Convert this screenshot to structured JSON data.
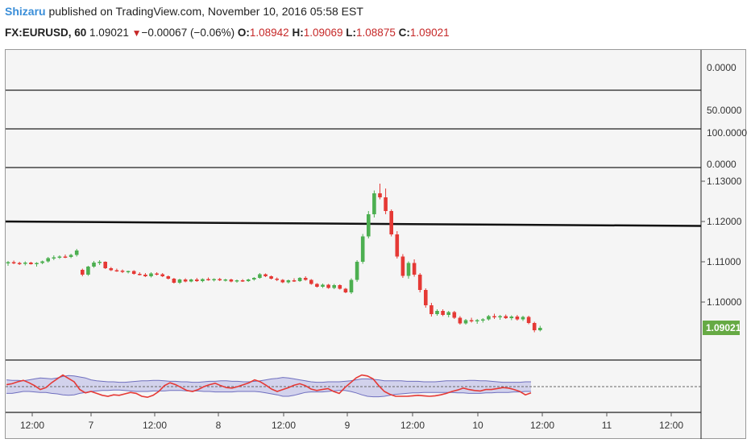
{
  "header": {
    "author": "Shizaru",
    "published_text": " published on TradingView.com, November 10, 2016 05:58 EST"
  },
  "ticker": {
    "symbol_interval": "FX:EURUSD, 60",
    "last": "1.09021",
    "down_icon": "triangle-down-icon",
    "change": "−0.00067 (−0.06%)",
    "o_label": "O:",
    "o_value": "1.08942",
    "h_label": "H:",
    "h_value": "1.09069",
    "l_label": "L:",
    "l_value": "1.08875",
    "c_label": "C:",
    "c_value": "1.09021"
  },
  "colors": {
    "up": "#4caf50",
    "down": "#e53935",
    "trendline": "#111111",
    "band_fill": "#d2d2ec",
    "band_line": "#6f6fbf",
    "osc_line": "#e53935",
    "price_tag_bg": "#66aa44",
    "pane_bg": "#f5f5f5"
  },
  "chart_data": {
    "type": "candlestick",
    "price_axis": {
      "labels": [
        "1.13000",
        "1.12000",
        "1.11000",
        "1.10000"
      ],
      "ylim": [
        1.0875,
        1.1335
      ]
    },
    "empty_panes": [
      {
        "axis_labels": [
          "0.0000"
        ]
      },
      {
        "axis_labels": [
          "50.0000"
        ]
      },
      {
        "axis_labels": [
          "100.0000",
          "0.0000"
        ]
      }
    ],
    "current_price_label": "1.09021",
    "x_axis_labels": [
      "12:00",
      "7",
      "12:00",
      "8",
      "12:00",
      "9",
      "12:00",
      "10",
      "12:00",
      "11",
      "12:00"
    ],
    "trendline": {
      "start": 1.12,
      "end": 1.1189
    },
    "candles": [
      [
        1.1096,
        1.1102,
        1.109,
        1.1099
      ],
      [
        1.1099,
        1.1103,
        1.1094,
        1.1097
      ],
      [
        1.1097,
        1.11,
        1.1092,
        1.1095
      ],
      [
        1.1095,
        1.1101,
        1.1091,
        1.1098
      ],
      [
        1.1098,
        1.11,
        1.1093,
        1.1094
      ],
      [
        1.1094,
        1.1099,
        1.1088,
        1.1097
      ],
      [
        1.1097,
        1.1103,
        1.1094,
        1.1101
      ],
      [
        1.1101,
        1.1112,
        1.1098,
        1.1109
      ],
      [
        1.1109,
        1.1116,
        1.1104,
        1.1111
      ],
      [
        1.1111,
        1.1116,
        1.1107,
        1.1113
      ],
      [
        1.1113,
        1.1118,
        1.1109,
        1.1112
      ],
      [
        1.1112,
        1.112,
        1.1109,
        1.1117
      ],
      [
        1.1117,
        1.1132,
        1.1113,
        1.1128
      ],
      [
        1.108,
        1.1083,
        1.1064,
        1.1068
      ],
      [
        1.1068,
        1.109,
        1.1065,
        1.1088
      ],
      [
        1.1088,
        1.1102,
        1.1085,
        1.1098
      ],
      [
        1.1098,
        1.1104,
        1.1092,
        1.11
      ],
      [
        1.11,
        1.1101,
        1.1082,
        1.1084
      ],
      [
        1.1084,
        1.1087,
        1.1077,
        1.1079
      ],
      [
        1.1079,
        1.1083,
        1.1075,
        1.1078
      ],
      [
        1.1078,
        1.1081,
        1.1072,
        1.1075
      ],
      [
        1.1075,
        1.1078,
        1.1071,
        1.1077
      ],
      [
        1.1077,
        1.1079,
        1.1068,
        1.107
      ],
      [
        1.107,
        1.1074,
        1.1066,
        1.1068
      ],
      [
        1.1068,
        1.1072,
        1.1062,
        1.1064
      ],
      [
        1.1064,
        1.1074,
        1.1061,
        1.1071
      ],
      [
        1.1071,
        1.1074,
        1.1066,
        1.1069
      ],
      [
        1.1069,
        1.1072,
        1.1062,
        1.1064
      ],
      [
        1.1064,
        1.1066,
        1.1056,
        1.1058
      ],
      [
        1.1058,
        1.106,
        1.1046,
        1.1048
      ],
      [
        1.1048,
        1.1058,
        1.1045,
        1.1056
      ],
      [
        1.1056,
        1.1059,
        1.1049,
        1.1051
      ],
      [
        1.1051,
        1.1058,
        1.1049,
        1.1056
      ],
      [
        1.1056,
        1.106,
        1.105,
        1.1052
      ],
      [
        1.1052,
        1.1059,
        1.1049,
        1.1057
      ],
      [
        1.1057,
        1.1061,
        1.1053,
        1.1055
      ],
      [
        1.1055,
        1.1059,
        1.1051,
        1.1057
      ],
      [
        1.1057,
        1.106,
        1.1052,
        1.1054
      ],
      [
        1.1054,
        1.1058,
        1.1051,
        1.1056
      ],
      [
        1.1056,
        1.1058,
        1.1049,
        1.1051
      ],
      [
        1.1051,
        1.1056,
        1.1048,
        1.1054
      ],
      [
        1.1054,
        1.1057,
        1.105,
        1.1052
      ],
      [
        1.1052,
        1.1058,
        1.105,
        1.1056
      ],
      [
        1.1056,
        1.1062,
        1.1053,
        1.106
      ],
      [
        1.106,
        1.1072,
        1.1058,
        1.1069
      ],
      [
        1.1069,
        1.1071,
        1.1062,
        1.1064
      ],
      [
        1.1064,
        1.1066,
        1.1056,
        1.1058
      ],
      [
        1.1058,
        1.1061,
        1.1052,
        1.1055
      ],
      [
        1.1055,
        1.1057,
        1.1047,
        1.1049
      ],
      [
        1.1049,
        1.1056,
        1.1046,
        1.1054
      ],
      [
        1.1054,
        1.1059,
        1.105,
        1.1052
      ],
      [
        1.1052,
        1.1062,
        1.105,
        1.106
      ],
      [
        1.106,
        1.1064,
        1.1053,
        1.1055
      ],
      [
        1.1055,
        1.1057,
        1.1043,
        1.1045
      ],
      [
        1.1045,
        1.1047,
        1.1036,
        1.1038
      ],
      [
        1.1038,
        1.1046,
        1.1035,
        1.1043
      ],
      [
        1.1043,
        1.1045,
        1.1033,
        1.1035
      ],
      [
        1.1035,
        1.1045,
        1.1032,
        1.1042
      ],
      [
        1.1042,
        1.1044,
        1.1031,
        1.1033
      ],
      [
        1.1033,
        1.1035,
        1.1022,
        1.1024
      ],
      [
        1.1024,
        1.1059,
        1.102,
        1.1055
      ],
      [
        1.1055,
        1.1104,
        1.105,
        1.11
      ],
      [
        1.11,
        1.1169,
        1.1095,
        1.1163
      ],
      [
        1.1163,
        1.1226,
        1.1158,
        1.1218
      ],
      [
        1.1218,
        1.1277,
        1.121,
        1.127
      ],
      [
        1.127,
        1.1294,
        1.1255,
        1.126
      ],
      [
        1.126,
        1.1282,
        1.1218,
        1.1226
      ],
      [
        1.1226,
        1.123,
        1.1163,
        1.1168
      ],
      [
        1.1168,
        1.1176,
        1.1108,
        1.1113
      ],
      [
        1.1113,
        1.1119,
        1.106,
        1.1065
      ],
      [
        1.1065,
        1.1101,
        1.1058,
        1.1097
      ],
      [
        1.1097,
        1.1106,
        1.1063,
        1.1068
      ],
      [
        1.1068,
        1.1072,
        1.1024,
        1.103
      ],
      [
        1.103,
        1.1034,
        1.0986,
        1.0992
      ],
      [
        1.0992,
        1.0998,
        1.0964,
        1.097
      ],
      [
        1.097,
        1.0982,
        1.0966,
        1.0978
      ],
      [
        1.0978,
        1.0982,
        1.0965,
        1.0968
      ],
      [
        1.0968,
        1.0978,
        1.0962,
        1.0975
      ],
      [
        1.0975,
        1.0978,
        1.0958,
        1.0961
      ],
      [
        1.0961,
        1.0965,
        1.0944,
        1.0947
      ],
      [
        1.0947,
        1.0958,
        1.0944,
        1.0955
      ],
      [
        1.0955,
        1.0961,
        1.0949,
        1.0952
      ],
      [
        1.0952,
        1.0958,
        1.0946,
        1.0955
      ],
      [
        1.0955,
        1.096,
        1.0949,
        1.0957
      ],
      [
        1.0957,
        1.0968,
        1.0954,
        1.0965
      ],
      [
        1.0965,
        1.0971,
        1.0958,
        1.0962
      ],
      [
        1.0962,
        1.0968,
        1.0956,
        1.0965
      ],
      [
        1.0965,
        1.0969,
        1.0958,
        1.096
      ],
      [
        1.096,
        1.0967,
        1.0955,
        1.0964
      ],
      [
        1.0964,
        1.0968,
        1.0954,
        1.0957
      ],
      [
        1.0957,
        1.0966,
        1.0953,
        1.0963
      ],
      [
        1.0963,
        1.0966,
        1.0945,
        1.0948
      ],
      [
        1.0948,
        1.0951,
        1.0925,
        1.093
      ],
      [
        1.093,
        1.0941,
        1.0927,
        1.0936
      ]
    ],
    "oscillator": {
      "upper": [
        64,
        63,
        63,
        62,
        64,
        66,
        68,
        67,
        66,
        68,
        71,
        73,
        72,
        70,
        68,
        64,
        62,
        61,
        60,
        60,
        59,
        59,
        60,
        61,
        62,
        62,
        63,
        63,
        62,
        61,
        61,
        60,
        60,
        59,
        59,
        60,
        61,
        61,
        62,
        62,
        61,
        61,
        60,
        60,
        61,
        62,
        64,
        66,
        67,
        69,
        68,
        66,
        64,
        62,
        60,
        59,
        59,
        60,
        60,
        60,
        61,
        62,
        64,
        66,
        66,
        65,
        64,
        62,
        62,
        62,
        62,
        61,
        61,
        61,
        60,
        60,
        60,
        61,
        62,
        62,
        62,
        62,
        63,
        63,
        62,
        62,
        61,
        60,
        59,
        59,
        59,
        59,
        60,
        60
      ],
      "lower": [
        36,
        36,
        38,
        40,
        40,
        39,
        38,
        38,
        36,
        35,
        33,
        32,
        33,
        36,
        38,
        40,
        41,
        42,
        42,
        43,
        43,
        42,
        41,
        40,
        40,
        40,
        41,
        41,
        41,
        42,
        42,
        42,
        41,
        41,
        41,
        40,
        40,
        39,
        39,
        39,
        39,
        40,
        40,
        40,
        40,
        39,
        37,
        35,
        33,
        30,
        30,
        32,
        35,
        38,
        39,
        39,
        39,
        40,
        41,
        42,
        42,
        40,
        37,
        33,
        30,
        29,
        29,
        30,
        32,
        34,
        35,
        36,
        37,
        37,
        38,
        38,
        38,
        38,
        38,
        38,
        37,
        37,
        36,
        36,
        36,
        37,
        37,
        38,
        38,
        38,
        39,
        39,
        40,
        40
      ],
      "line": [
        54,
        56,
        60,
        63,
        58,
        52,
        44,
        48,
        58,
        66,
        74,
        67,
        60,
        44,
        37,
        40,
        36,
        32,
        30,
        33,
        32,
        35,
        38,
        36,
        30,
        28,
        32,
        40,
        52,
        58,
        54,
        48,
        42,
        40,
        44,
        50,
        54,
        57,
        52,
        48,
        47,
        50,
        54,
        58,
        64,
        60,
        53,
        45,
        40,
        44,
        48,
        53,
        56,
        52,
        45,
        42,
        44,
        46,
        40,
        36,
        48,
        58,
        68,
        74,
        72,
        66,
        52,
        40,
        34,
        30,
        30,
        30,
        31,
        32,
        31,
        30,
        31,
        33,
        36,
        40,
        43,
        47,
        44,
        42,
        41,
        44,
        44,
        46,
        48,
        47,
        44,
        40,
        33,
        37
      ]
    },
    "osc_dashed_level": 50
  }
}
